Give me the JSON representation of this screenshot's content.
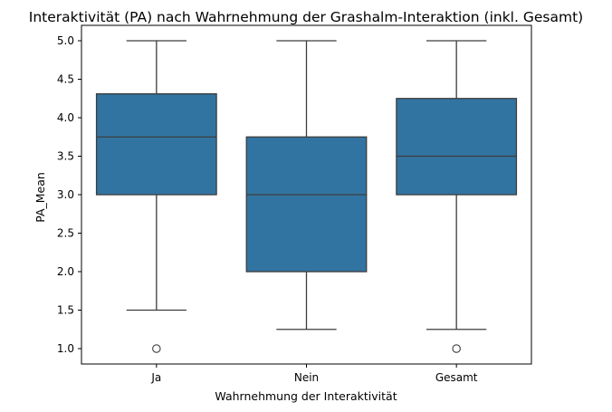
{
  "chart_data": {
    "type": "box",
    "title": "Interaktivität (PA) nach Wahrnehmung der Grashalm-Interaktion (inkl. Gesamt)",
    "xlabel": "Wahrnehmung der Interaktivität",
    "ylabel": "PA_Mean",
    "ylim": [
      0.8,
      5.2
    ],
    "yticks": [
      "1.0",
      "1.5",
      "2.0",
      "2.5",
      "3.0",
      "3.5",
      "4.0",
      "4.5",
      "5.0"
    ],
    "categories": [
      "Ja",
      "Nein",
      "Gesamt"
    ],
    "boxes": [
      {
        "category": "Ja",
        "whisker_low": 1.5,
        "q1": 3.0,
        "median": 3.75,
        "q3": 4.31,
        "whisker_high": 5.0,
        "outliers": [
          1.0
        ]
      },
      {
        "category": "Nein",
        "whisker_low": 1.25,
        "q1": 2.0,
        "median": 3.0,
        "q3": 3.75,
        "whisker_high": 5.0,
        "outliers": []
      },
      {
        "category": "Gesamt",
        "whisker_low": 1.25,
        "q1": 3.0,
        "median": 3.5,
        "q3": 4.25,
        "whisker_high": 5.0,
        "outliers": [
          1.0
        ]
      }
    ],
    "colors": {
      "box_fill": "#3274a1",
      "line": "#3d3d3d",
      "axis": "#000000"
    },
    "grid": false
  }
}
